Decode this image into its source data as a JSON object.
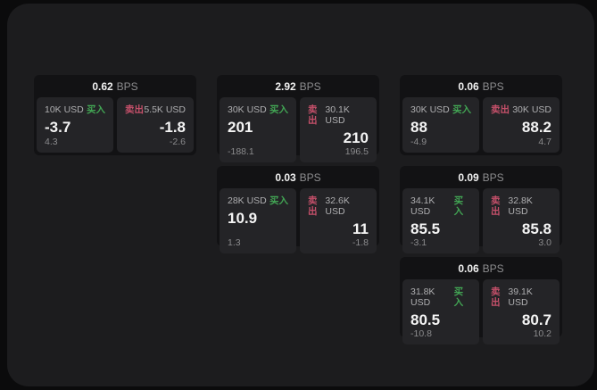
{
  "labels": {
    "bps_unit": "BPS",
    "buy": "买入",
    "sell": "卖出"
  },
  "colors": {
    "buy_green": "#42a554",
    "sell_red": "#c5506a",
    "outer_bg": "#0b0b0c",
    "panel_bg": "#1c1c1e",
    "card_bg": "#121214",
    "tile_bg": "#242427"
  },
  "cards": [
    {
      "bps": "0.62",
      "buy": {
        "amount": "10K USD",
        "value": "-3.7",
        "sub": "4.3"
      },
      "sell": {
        "amount": "5.5K USD",
        "value": "-1.8",
        "sub": "-2.6"
      }
    },
    {
      "bps": "2.92",
      "buy": {
        "amount": "30K USD",
        "value": "201",
        "sub": "-188.1"
      },
      "sell": {
        "amount": "30.1K USD",
        "value": "210",
        "sub": "196.5"
      }
    },
    {
      "bps": "0.06",
      "buy": {
        "amount": "30K USD",
        "value": "88",
        "sub": "-4.9"
      },
      "sell": {
        "amount": "30K USD",
        "value": "88.2",
        "sub": "4.7"
      }
    },
    {
      "bps": "0.03",
      "buy": {
        "amount": "28K USD",
        "value": "10.9",
        "sub": "1.3"
      },
      "sell": {
        "amount": "32.6K USD",
        "value": "11",
        "sub": "-1.8"
      }
    },
    {
      "bps": "0.09",
      "buy": {
        "amount": "34.1K USD",
        "value": "85.5",
        "sub": "-3.1"
      },
      "sell": {
        "amount": "32.8K USD",
        "value": "85.8",
        "sub": "3.0"
      }
    },
    {
      "bps": "0.06",
      "buy": {
        "amount": "31.8K USD",
        "value": "80.5",
        "sub": "-10.8"
      },
      "sell": {
        "amount": "39.1K USD",
        "value": "80.7",
        "sub": "10.2"
      }
    }
  ]
}
